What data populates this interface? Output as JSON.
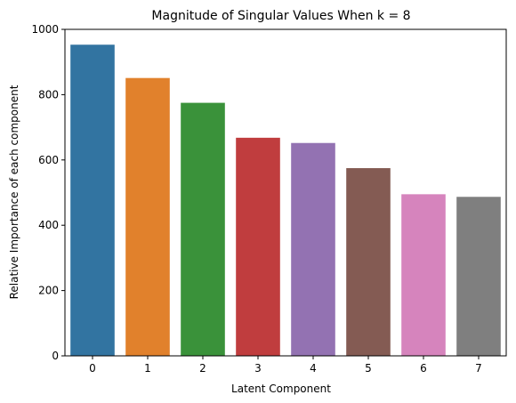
{
  "chart_data": {
    "type": "bar",
    "title": "Magnitude of Singular Values When k = 8",
    "xlabel": "Latent Component",
    "ylabel": "Relative Importance of each component",
    "categories": [
      "0",
      "1",
      "2",
      "3",
      "4",
      "5",
      "6",
      "7"
    ],
    "values": [
      953,
      851,
      775,
      668,
      652,
      575,
      495,
      487
    ],
    "colors": [
      "#3274a1",
      "#e1812c",
      "#3a923a",
      "#c03d3e",
      "#9372b2",
      "#845b53",
      "#d684bd",
      "#7f7f7f"
    ],
    "ylim": [
      0,
      1000
    ],
    "yticks": [
      0,
      200,
      400,
      600,
      800,
      1000
    ],
    "grid": false,
    "legend": "none"
  }
}
